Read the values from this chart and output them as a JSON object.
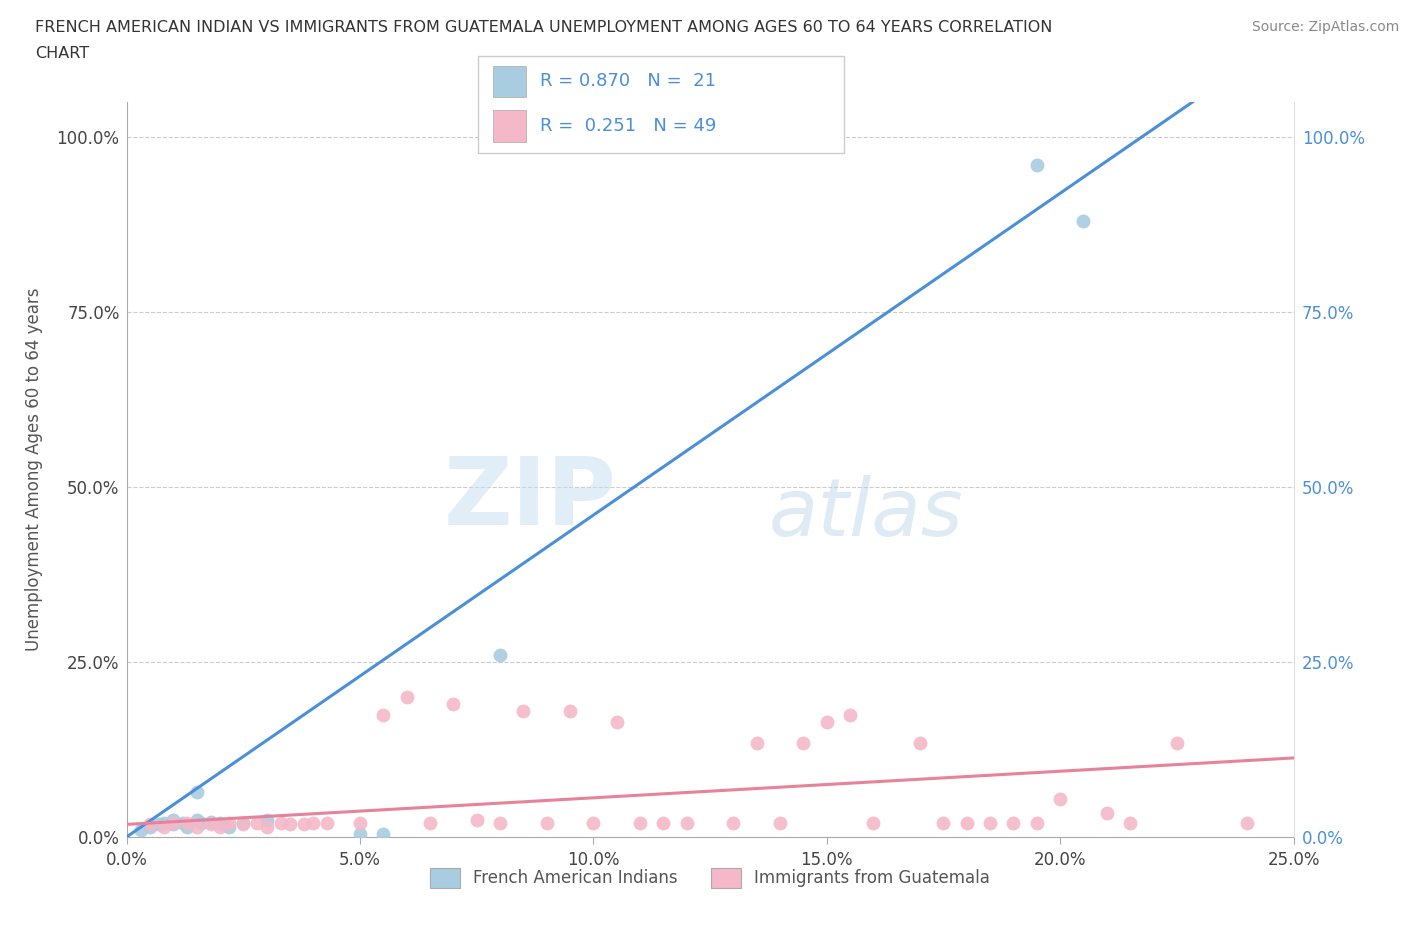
{
  "title_line1": "FRENCH AMERICAN INDIAN VS IMMIGRANTS FROM GUATEMALA UNEMPLOYMENT AMONG AGES 60 TO 64 YEARS CORRELATION",
  "title_line2": "CHART",
  "source": "Source: ZipAtlas.com",
  "ylabel": "Unemployment Among Ages 60 to 64 years",
  "xlim": [
    0,
    0.25
  ],
  "ylim": [
    0,
    1.05
  ],
  "xticks": [
    0.0,
    0.05,
    0.1,
    0.15,
    0.2,
    0.25
  ],
  "yticks": [
    0.0,
    0.25,
    0.5,
    0.75,
    1.0
  ],
  "legend_label1": "French American Indians",
  "legend_label2": "Immigrants from Guatemala",
  "legend_text1": "R = 0.870   N =  21",
  "legend_text2": "R =  0.251   N = 49",
  "color1": "#a8cce0",
  "color2": "#f4b8c8",
  "line_color1": "#4a90d9",
  "line_color2": "#e8829a",
  "tick_color_right": "#4a90d9",
  "watermark": "ZIPatlas",
  "scatter1_x": [
    0.003,
    0.005,
    0.007,
    0.008,
    0.01,
    0.01,
    0.012,
    0.013,
    0.015,
    0.015,
    0.016,
    0.018,
    0.02,
    0.022,
    0.025,
    0.03,
    0.05,
    0.055,
    0.08,
    0.195,
    0.205
  ],
  "scatter1_y": [
    0.01,
    0.015,
    0.018,
    0.02,
    0.018,
    0.025,
    0.02,
    0.015,
    0.025,
    0.065,
    0.02,
    0.022,
    0.02,
    0.015,
    0.02,
    0.025,
    0.005,
    0.005,
    0.26,
    0.96,
    0.88
  ],
  "scatter2_x": [
    0.005,
    0.008,
    0.01,
    0.013,
    0.015,
    0.018,
    0.02,
    0.022,
    0.025,
    0.028,
    0.03,
    0.033,
    0.035,
    0.038,
    0.04,
    0.043,
    0.05,
    0.055,
    0.06,
    0.065,
    0.07,
    0.075,
    0.08,
    0.085,
    0.09,
    0.095,
    0.1,
    0.105,
    0.11,
    0.115,
    0.12,
    0.13,
    0.135,
    0.14,
    0.145,
    0.15,
    0.155,
    0.16,
    0.17,
    0.175,
    0.18,
    0.185,
    0.19,
    0.195,
    0.2,
    0.21,
    0.215,
    0.225,
    0.24
  ],
  "scatter2_y": [
    0.018,
    0.015,
    0.02,
    0.02,
    0.015,
    0.018,
    0.015,
    0.02,
    0.018,
    0.02,
    0.015,
    0.02,
    0.018,
    0.018,
    0.02,
    0.02,
    0.02,
    0.175,
    0.2,
    0.02,
    0.19,
    0.025,
    0.02,
    0.18,
    0.02,
    0.18,
    0.02,
    0.165,
    0.02,
    0.02,
    0.02,
    0.02,
    0.135,
    0.02,
    0.135,
    0.165,
    0.175,
    0.02,
    0.135,
    0.02,
    0.02,
    0.02,
    0.02,
    0.02,
    0.055,
    0.035,
    0.02,
    0.135,
    0.02
  ]
}
